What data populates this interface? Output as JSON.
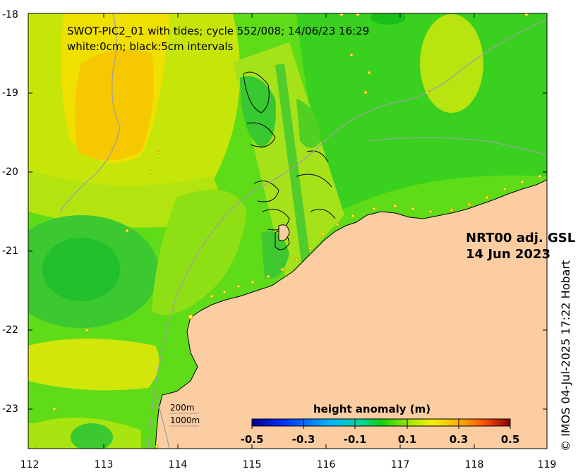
{
  "title": {
    "line1": "SWOT-PIC2_01 with tides; cycle 552/008; 14/06/23 16:29",
    "line2": "white:0cm; black:5cm intervals"
  },
  "product": {
    "line1": "NRT00 adj. GSL",
    "line2": "14 Jun 2023"
  },
  "contour_legend": {
    "shallow": "200m",
    "deep": "1000m"
  },
  "colorbar": {
    "title": "height anomaly (m)",
    "min": -0.5,
    "max": 0.5,
    "ticks": [
      "-0.5",
      "-0.3",
      "-0.1",
      "0.1",
      "0.3",
      "0.5"
    ],
    "colors": [
      "#00008b",
      "#0030ff",
      "#00b4ff",
      "#00e0c0",
      "#00d000",
      "#9be600",
      "#f0f000",
      "#ffb000",
      "#ff5000",
      "#8b0000"
    ]
  },
  "credit": "© IMOS 04-Jul-2025 17:22 Hobart",
  "x_axis": {
    "ticks": [
      "112",
      "113",
      "114",
      "115",
      "116",
      "117",
      "118",
      "119"
    ],
    "range": [
      112,
      119
    ]
  },
  "y_axis": {
    "ticks": [
      "-18",
      "-19",
      "-20",
      "-21",
      "-22",
      "-23"
    ],
    "range": [
      -23.5,
      -18
    ]
  },
  "colors": {
    "land": "#fdcda2",
    "coastline": "#000000",
    "isobath": "#a0a0a0",
    "tide_gauge": "#ffff55"
  }
}
